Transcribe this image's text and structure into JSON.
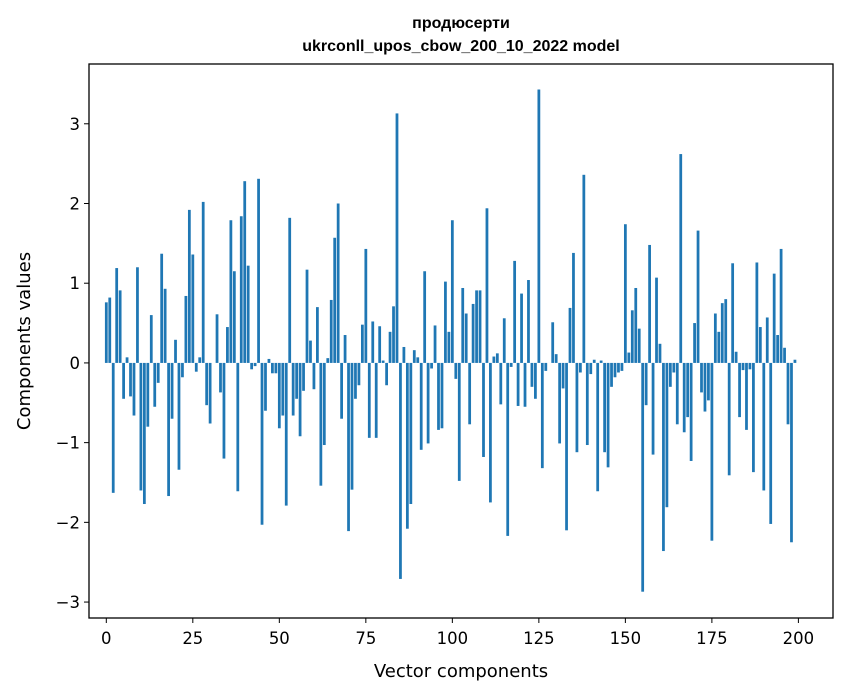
{
  "chart_data": {
    "type": "bar",
    "title_line1": "продюсерти",
    "title_line2": "ukrconll_upos_cbow_200_10_2022 model",
    "xlabel": "Vector components",
    "ylabel": "Components values",
    "xlim": [
      -5,
      210
    ],
    "ylim": [
      -3.2,
      3.75
    ],
    "xticks": [
      0,
      25,
      50,
      75,
      100,
      125,
      150,
      175,
      200
    ],
    "xtick_labels": [
      "0",
      "25",
      "50",
      "75",
      "100",
      "125",
      "150",
      "175",
      "200"
    ],
    "yticks": [
      3,
      2,
      1,
      0,
      -1,
      -2,
      -3
    ],
    "ytick_labels": [
      "3",
      "2",
      "1",
      "0",
      "−1",
      "−2",
      "−3"
    ],
    "grid": false,
    "bar_color": "#1f77b4",
    "values": [
      0.76,
      0.82,
      -1.63,
      1.19,
      0.91,
      -0.45,
      0.07,
      -0.42,
      -0.66,
      1.2,
      -1.6,
      -1.77,
      -0.8,
      0.6,
      -0.55,
      -0.25,
      1.37,
      0.93,
      -1.67,
      -0.7,
      0.29,
      -1.34,
      -0.18,
      0.84,
      1.92,
      1.36,
      -0.11,
      0.07,
      2.02,
      -0.53,
      -0.76,
      0.0,
      0.61,
      -0.37,
      -1.2,
      0.45,
      1.79,
      1.15,
      -1.61,
      1.84,
      2.28,
      1.22,
      -0.08,
      -0.04,
      2.31,
      -2.03,
      -0.6,
      0.05,
      -0.13,
      -0.13,
      -0.82,
      -0.66,
      -1.79,
      1.82,
      -0.66,
      -0.45,
      -0.92,
      -0.35,
      1.17,
      0.28,
      -0.33,
      0.7,
      -1.54,
      -1.03,
      0.06,
      0.79,
      1.57,
      2.0,
      -0.7,
      0.35,
      -2.11,
      -1.59,
      -0.45,
      -0.28,
      0.48,
      1.43,
      -0.94,
      0.52,
      -0.94,
      0.46,
      0.03,
      -0.28,
      0.39,
      0.71,
      3.13,
      -2.71,
      0.2,
      -2.08,
      -1.77,
      0.16,
      0.07,
      -1.09,
      1.15,
      -1.01,
      -0.07,
      0.47,
      -0.84,
      -0.82,
      1.02,
      0.39,
      1.79,
      -0.2,
      -1.48,
      0.94,
      0.62,
      -0.77,
      0.74,
      0.91,
      0.91,
      -1.18,
      1.94,
      -1.75,
      0.08,
      0.12,
      -0.52,
      0.56,
      -2.17,
      -0.05,
      1.28,
      -0.54,
      0.87,
      -0.55,
      1.04,
      -0.3,
      -0.45,
      3.43,
      -1.32,
      -0.1,
      0.0,
      0.51,
      0.11,
      -1.01,
      -0.32,
      -2.1,
      0.69,
      1.38,
      -1.12,
      -0.12,
      2.36,
      -1.03,
      -0.14,
      0.04,
      -1.61,
      0.03,
      -1.12,
      -1.31,
      -0.3,
      -0.18,
      -0.12,
      -0.1,
      1.74,
      0.13,
      0.66,
      0.94,
      0.43,
      -2.87,
      -0.53,
      1.48,
      -1.15,
      1.07,
      0.24,
      -2.36,
      -1.81,
      -0.3,
      -0.12,
      -0.77,
      2.62,
      -0.87,
      -0.68,
      -1.23,
      0.5,
      1.66,
      -0.37,
      -0.61,
      -0.47,
      -2.23,
      0.62,
      0.39,
      0.75,
      0.8,
      -1.41,
      1.25,
      0.14,
      -0.68,
      -0.09,
      -0.84,
      -0.08,
      -1.37,
      1.26,
      0.45,
      -1.6,
      0.57,
      -2.02,
      1.12,
      0.35,
      1.43,
      0.19,
      -0.77,
      -2.25,
      0.04
    ]
  }
}
